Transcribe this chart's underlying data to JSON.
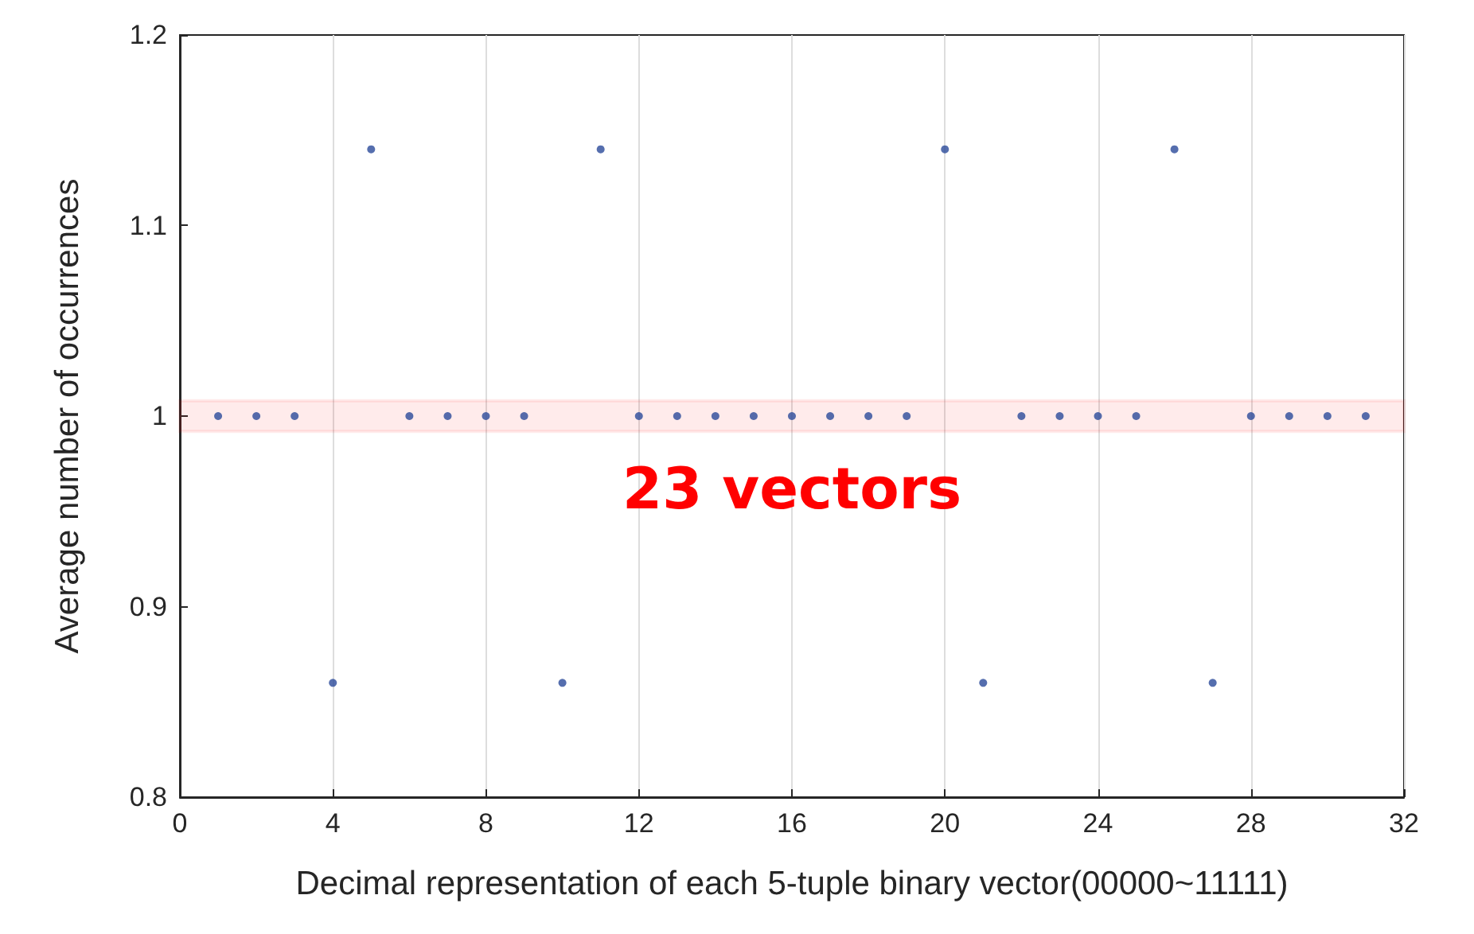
{
  "chart_data": {
    "type": "scatter",
    "xlabel": "Decimal representation of each 5-tuple binary vector(00000~11111)",
    "ylabel": "Average number of occurrences",
    "x": [
      1,
      2,
      3,
      4,
      5,
      6,
      7,
      8,
      9,
      10,
      11,
      12,
      13,
      14,
      15,
      16,
      17,
      18,
      19,
      20,
      21,
      22,
      23,
      24,
      25,
      26,
      27,
      28,
      29,
      30,
      31
    ],
    "series": [
      {
        "color": "#2b4a9a",
        "values": [
          1,
          1,
          1,
          0.86,
          1.14,
          1,
          1,
          1,
          1,
          0.86,
          1.14,
          1,
          1,
          1,
          1,
          1,
          1,
          1,
          1,
          1.14,
          0.86,
          1,
          1,
          1,
          1,
          1.14,
          0.86,
          1,
          1,
          1,
          1
        ]
      }
    ],
    "xlim": [
      0,
      32
    ],
    "xticks": [
      0,
      4,
      8,
      12,
      16,
      20,
      24,
      28,
      32
    ],
    "ylim": [
      0.8,
      1.2
    ],
    "yticks": [
      0.8,
      0.9,
      1,
      1.1,
      1.2
    ],
    "grid": "x",
    "marker": "circle",
    "bands": [
      {
        "axis": "y",
        "from": 0.992,
        "to": 1.008,
        "label": "23 vectors",
        "color": "#ff0000"
      }
    ]
  }
}
